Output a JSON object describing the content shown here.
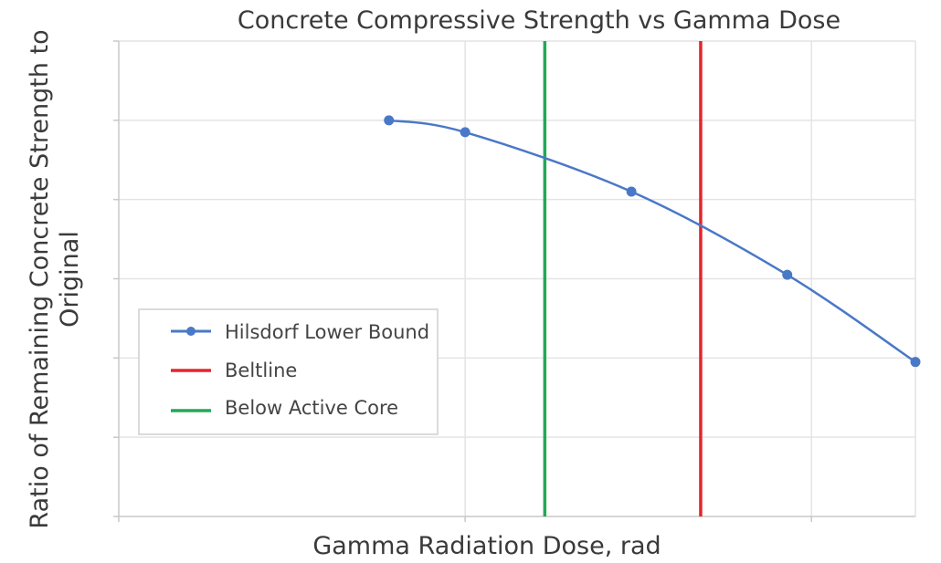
{
  "chart_data": {
    "type": "line",
    "title": "Concrete Compressive Strength vs Gamma Dose",
    "xlabel": "Gamma Radiation Dose, rad",
    "ylabel_lines": [
      "Ratio of Remaining Concrete Strength to",
      "Original"
    ],
    "x_scale": "log",
    "xlim_log10": [
      8,
      10.3
    ],
    "ylim": [
      0.4,
      1.0
    ],
    "grid": true,
    "x_tick_labels_shown": false,
    "y_tick_labels_shown": false,
    "legend": {
      "placement": "lower-left",
      "entries": [
        {
          "label": "Hilsdorf Lower Bound",
          "color": "#4a78c8",
          "marker": "circle"
        },
        {
          "label": "Beltline",
          "color": "#e3262c",
          "marker": "none"
        },
        {
          "label": "Below Active Core",
          "color": "#22a957",
          "marker": "none"
        }
      ]
    },
    "series": [
      {
        "name": "Hilsdorf Lower Bound",
        "color": "#4a78c8",
        "points": [
          {
            "log10_dose": 8.78,
            "ratio": 0.9
          },
          {
            "log10_dose": 9.0,
            "ratio": 0.885
          },
          {
            "log10_dose": 9.48,
            "ratio": 0.81
          },
          {
            "log10_dose": 9.93,
            "ratio": 0.705
          },
          {
            "log10_dose": 10.3,
            "ratio": 0.595
          }
        ]
      }
    ],
    "vertical_lines": [
      {
        "name": "Beltline",
        "log10_dose": 9.68,
        "color": "#e3262c"
      },
      {
        "name": "Below Active Core",
        "log10_dose": 9.23,
        "color": "#22a957"
      }
    ],
    "x_gridlines_log10": [
      9,
      10
    ],
    "y_ticks": [
      0.4,
      0.5,
      0.6,
      0.7,
      0.8,
      0.9,
      1.0
    ]
  }
}
